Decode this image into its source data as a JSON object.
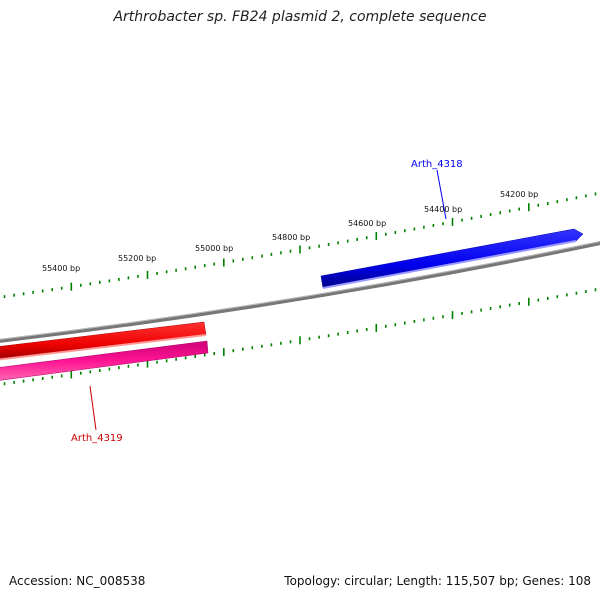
{
  "title": "Arthrobacter sp. FB24 plasmid 2, complete sequence",
  "footer": {
    "accession": "Accession: NC_008538",
    "summary": "Topology: circular; Length: 115,507 bp; Genes: 108"
  },
  "ruler_labels": [
    "55400 bp",
    "55200 bp",
    "55000 bp",
    "54800 bp",
    "54600 bp",
    "54400 bp",
    "54200 bp"
  ],
  "genes": [
    {
      "name": "Arth_4318",
      "strand": "forward",
      "color": "#0000ee"
    },
    {
      "name": "Arth_4319",
      "strand": "reverse",
      "color": "#cc0000"
    }
  ],
  "colors": {
    "backbone": "#888888",
    "ticks": "#008000",
    "forward_gene": "#0000ee",
    "reverse_gene_outer": "#ff0000",
    "reverse_gene_inner": "#ff1493"
  }
}
